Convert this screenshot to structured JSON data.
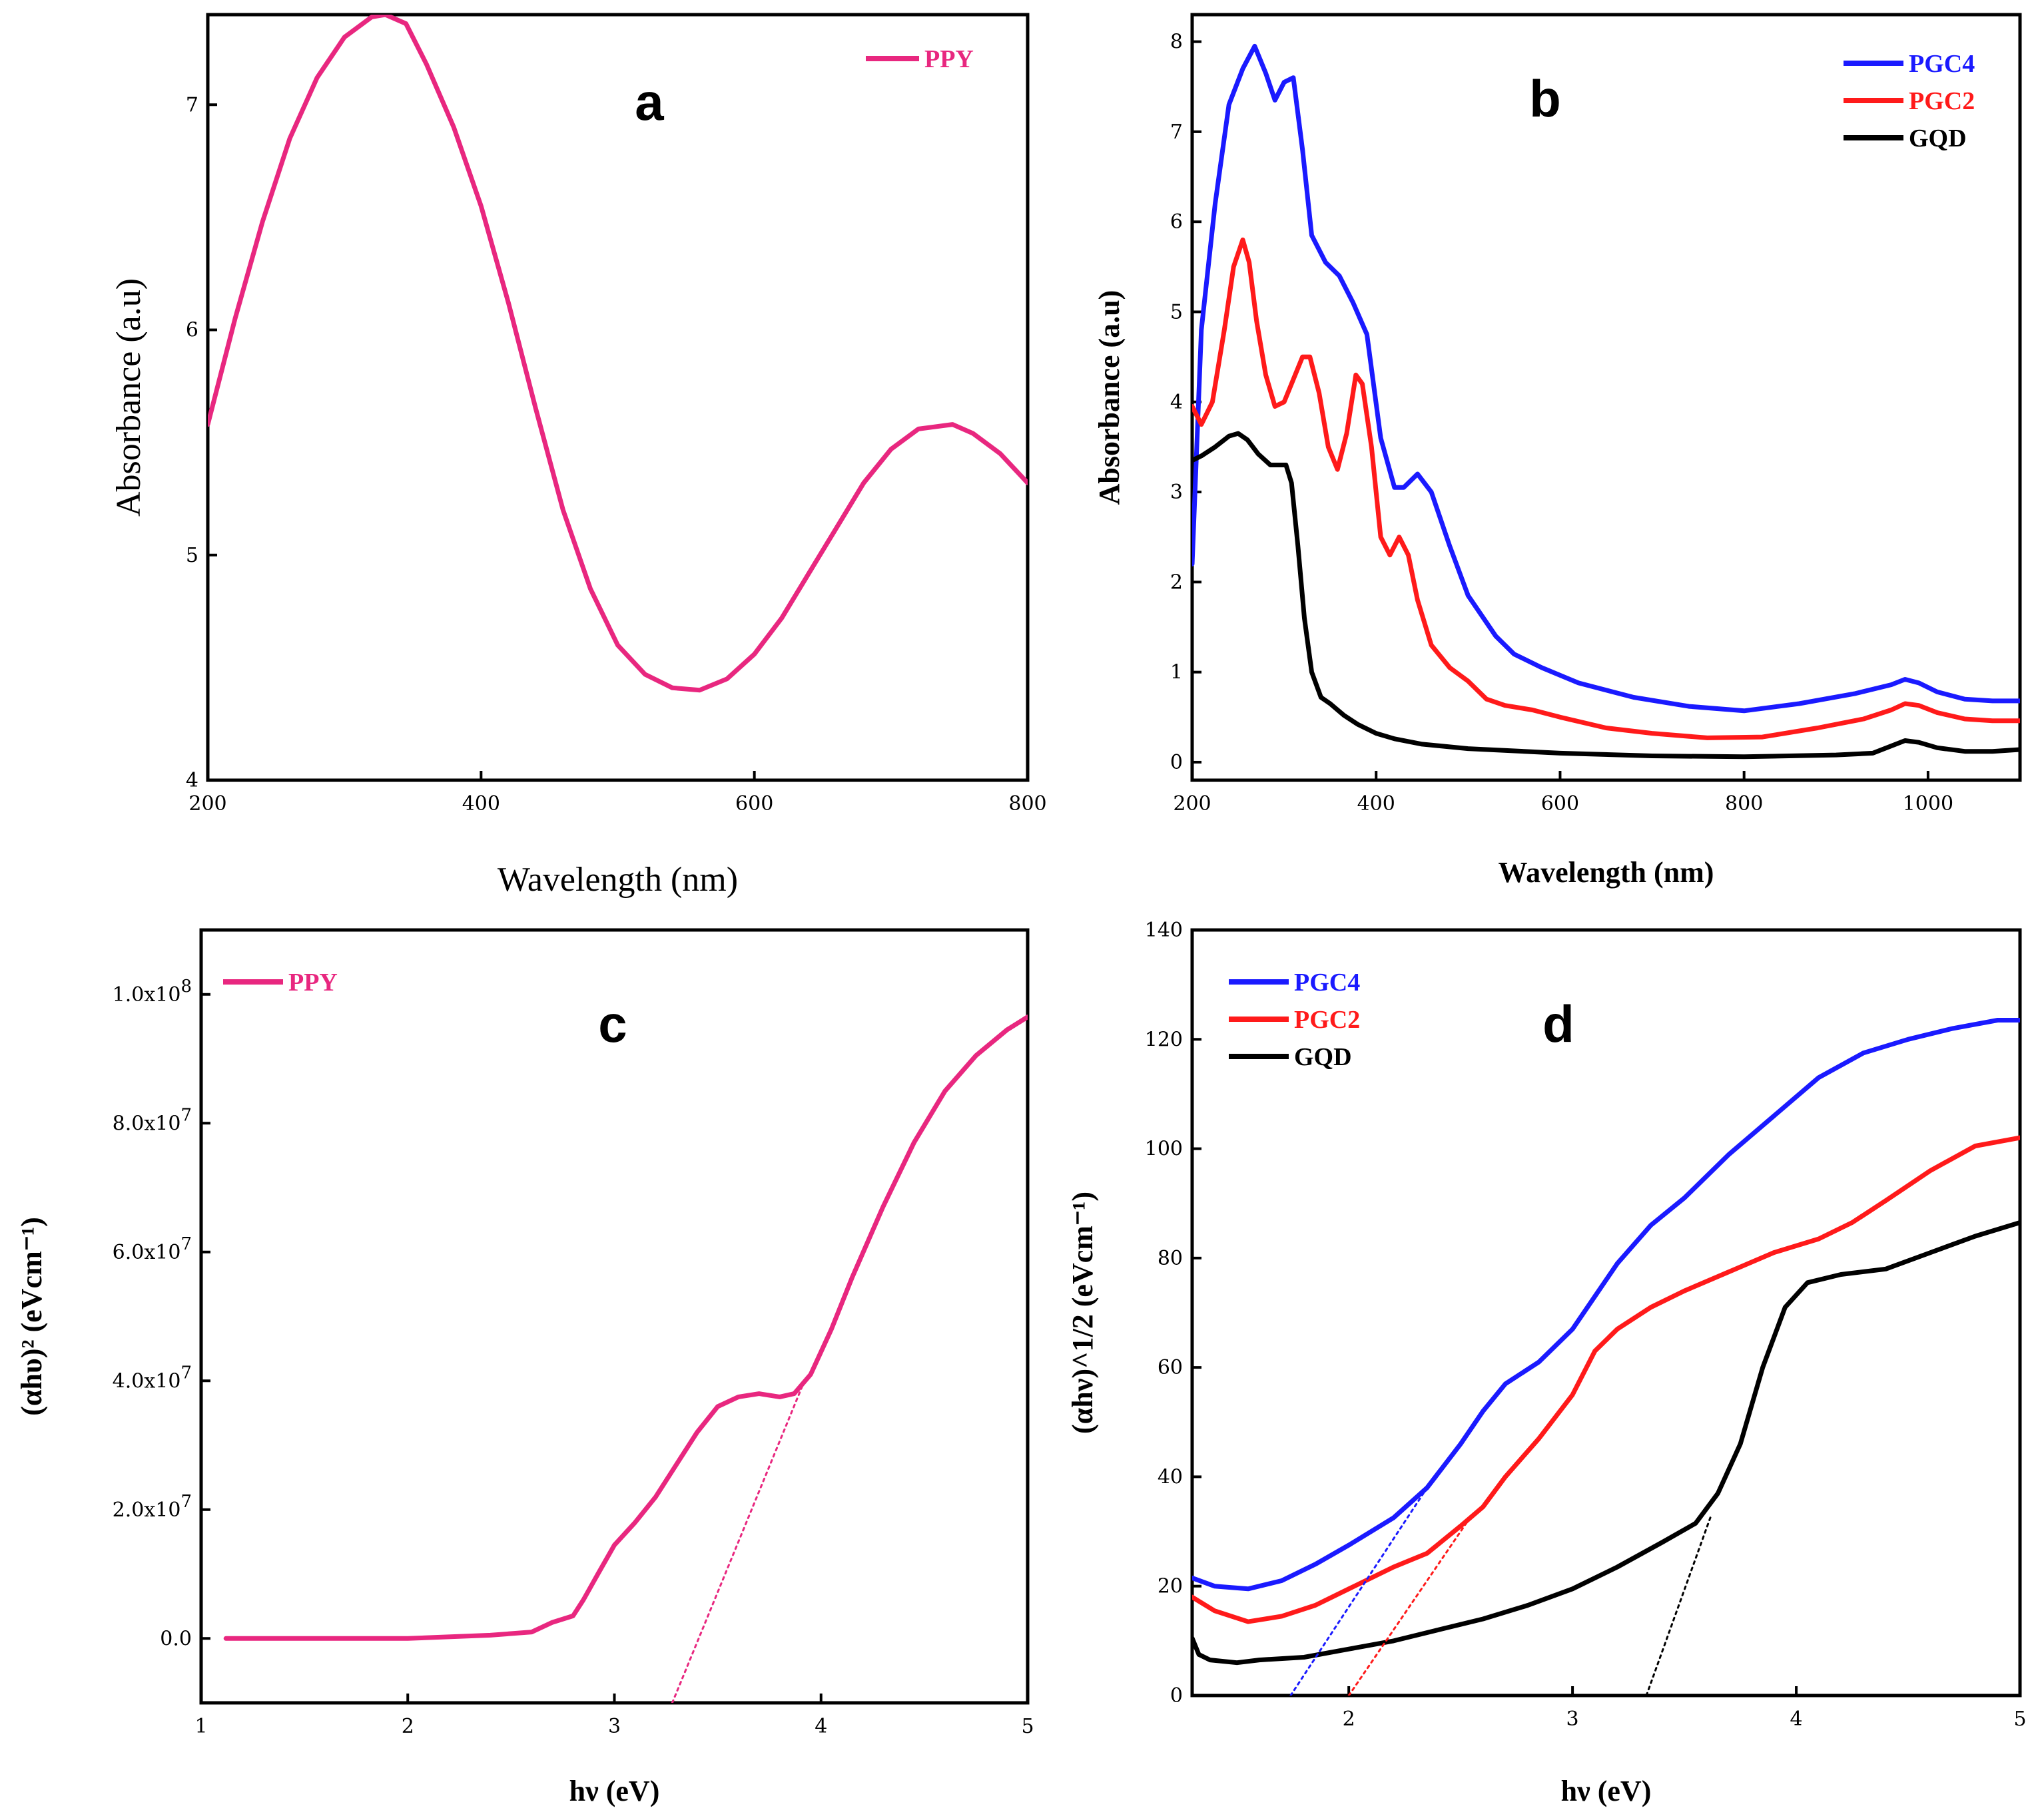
{
  "figure_title": "",
  "chart_data": [
    {
      "panel": "a",
      "type": "line",
      "panel_label": "a",
      "title": "",
      "xlabel": "Wavelength (nm)",
      "ylabel": "Absorbance (a.u)",
      "xlim": [
        200,
        800
      ],
      "ylim": [
        4,
        7.4
      ],
      "xticks": [
        200,
        400,
        600,
        800
      ],
      "yticks": [
        4,
        5,
        6,
        7
      ],
      "legend": "top-right",
      "series": [
        {
          "name": "PPY",
          "color": "#e8277f",
          "x": [
            200,
            220,
            240,
            260,
            280,
            300,
            320,
            330,
            345,
            360,
            380,
            400,
            420,
            440,
            460,
            480,
            500,
            520,
            540,
            560,
            580,
            600,
            620,
            640,
            660,
            680,
            700,
            720,
            745,
            760,
            780,
            800
          ],
          "y": [
            5.58,
            6.05,
            6.48,
            6.85,
            7.12,
            7.3,
            7.39,
            7.4,
            7.36,
            7.18,
            6.9,
            6.55,
            6.12,
            5.65,
            5.2,
            4.85,
            4.6,
            4.47,
            4.41,
            4.4,
            4.45,
            4.56,
            4.72,
            4.92,
            5.12,
            5.32,
            5.47,
            5.56,
            5.58,
            5.54,
            5.45,
            5.32
          ]
        }
      ]
    },
    {
      "panel": "b",
      "type": "line",
      "panel_label": "b",
      "title": "",
      "xlabel": "Wavelength (nm)",
      "ylabel": "Absorbance (a.u)",
      "xlim": [
        200,
        1100
      ],
      "ylim": [
        -0.2,
        8.3
      ],
      "xticks": [
        200,
        400,
        600,
        800,
        1000
      ],
      "yticks": [
        0,
        1,
        2,
        3,
        4,
        5,
        6,
        7,
        8
      ],
      "legend": "top-right",
      "series": [
        {
          "name": "PGC4",
          "color": "#1a1aff",
          "x": [
            200,
            210,
            225,
            240,
            255,
            268,
            280,
            290,
            300,
            310,
            320,
            330,
            345,
            360,
            375,
            390,
            405,
            420,
            430,
            445,
            460,
            480,
            500,
            530,
            550,
            580,
            620,
            680,
            740,
            800,
            860,
            920,
            960,
            975,
            990,
            1010,
            1040,
            1070,
            1100
          ],
          "y": [
            2.2,
            4.8,
            6.2,
            7.3,
            7.7,
            7.95,
            7.65,
            7.35,
            7.55,
            7.6,
            6.8,
            5.85,
            5.55,
            5.4,
            5.1,
            4.75,
            3.6,
            3.05,
            3.05,
            3.2,
            3.0,
            2.4,
            1.85,
            1.4,
            1.2,
            1.05,
            0.88,
            0.72,
            0.62,
            0.57,
            0.65,
            0.76,
            0.86,
            0.92,
            0.88,
            0.78,
            0.7,
            0.68,
            0.68
          ]
        },
        {
          "name": "PGC2",
          "color": "#ff1a1a",
          "x": [
            200,
            210,
            222,
            235,
            245,
            255,
            262,
            270,
            280,
            290,
            300,
            310,
            320,
            328,
            338,
            348,
            358,
            368,
            378,
            385,
            395,
            405,
            415,
            425,
            435,
            445,
            460,
            480,
            500,
            520,
            540,
            570,
            600,
            650,
            700,
            760,
            820,
            880,
            930,
            960,
            975,
            990,
            1010,
            1040,
            1070,
            1100
          ],
          "y": [
            3.95,
            3.75,
            4.0,
            4.8,
            5.5,
            5.8,
            5.55,
            4.9,
            4.3,
            3.95,
            4.0,
            4.25,
            4.5,
            4.5,
            4.1,
            3.5,
            3.25,
            3.65,
            4.3,
            4.2,
            3.5,
            2.5,
            2.3,
            2.5,
            2.3,
            1.8,
            1.3,
            1.05,
            0.9,
            0.7,
            0.63,
            0.58,
            0.5,
            0.38,
            0.32,
            0.27,
            0.28,
            0.38,
            0.48,
            0.58,
            0.65,
            0.63,
            0.55,
            0.48,
            0.46,
            0.46
          ]
        },
        {
          "name": "GQD",
          "color": "#000000",
          "x": [
            200,
            210,
            225,
            240,
            250,
            260,
            272,
            285,
            295,
            302,
            308,
            315,
            322,
            330,
            340,
            350,
            365,
            380,
            400,
            420,
            450,
            500,
            600,
            700,
            800,
            900,
            940,
            960,
            975,
            990,
            1010,
            1040,
            1070,
            1100
          ],
          "y": [
            3.35,
            3.4,
            3.5,
            3.62,
            3.65,
            3.58,
            3.42,
            3.3,
            3.3,
            3.3,
            3.1,
            2.4,
            1.6,
            1.0,
            0.72,
            0.65,
            0.52,
            0.42,
            0.32,
            0.26,
            0.2,
            0.15,
            0.1,
            0.07,
            0.06,
            0.08,
            0.1,
            0.18,
            0.24,
            0.22,
            0.16,
            0.12,
            0.12,
            0.14
          ]
        }
      ]
    },
    {
      "panel": "c",
      "type": "line",
      "panel_label": "c",
      "title": "",
      "xlabel": "hν (eV)",
      "ylabel": "(αhυ)² (eVcm⁻¹)",
      "xlim": [
        1,
        5
      ],
      "ylim": [
        -10000000,
        110000000
      ],
      "xticks": [
        1,
        2,
        3,
        4,
        5
      ],
      "yticks": [
        0,
        20000000,
        40000000,
        60000000,
        80000000,
        100000000
      ],
      "ytick_labels": [
        {
          "base": "0.0",
          "exp": ""
        },
        {
          "base": "2.0x10",
          "exp": "7"
        },
        {
          "base": "4.0x10",
          "exp": "7"
        },
        {
          "base": "6.0x10",
          "exp": "7"
        },
        {
          "base": "8.0x10",
          "exp": "7"
        },
        {
          "base": "1.0x10",
          "exp": "8"
        }
      ],
      "legend": "top-left",
      "series": [
        {
          "name": "PPY",
          "color": "#e8277f",
          "x": [
            1.12,
            1.5,
            2.0,
            2.4,
            2.6,
            2.7,
            2.8,
            2.85,
            2.92,
            3.0,
            3.1,
            3.2,
            3.3,
            3.4,
            3.5,
            3.6,
            3.7,
            3.8,
            3.87,
            3.95,
            4.05,
            4.15,
            4.3,
            4.45,
            4.6,
            4.75,
            4.9,
            5.0
          ],
          "y": [
            0,
            0,
            0,
            500000,
            1000000,
            2500000,
            3500000,
            6000000,
            10000000,
            14500000,
            18000000,
            22000000,
            27000000,
            32000000,
            36000000,
            37500000,
            38000000,
            37500000,
            38000000,
            41000000,
            48000000,
            56000000,
            67000000,
            77000000,
            85000000,
            90500000,
            94500000,
            96500000
          ]
        },
        {
          "name": "tangent",
          "color": "#e8277f",
          "dashed": true,
          "x": [
            3.28,
            3.92
          ],
          "y": [
            -10000000,
            40000000
          ]
        }
      ]
    },
    {
      "panel": "d",
      "type": "line",
      "panel_label": "d",
      "title": "",
      "xlabel": "hν (eV)",
      "ylabel": "(αhν)^1/2 (eVcm⁻¹)",
      "xlim": [
        1.3,
        5
      ],
      "ylim": [
        0,
        140
      ],
      "xticks": [
        2,
        3,
        4,
        5
      ],
      "yticks": [
        0,
        20,
        40,
        60,
        80,
        100,
        120,
        140
      ],
      "legend": "top-left",
      "series": [
        {
          "name": "PGC4",
          "color": "#1a1aff",
          "x": [
            1.3,
            1.4,
            1.55,
            1.7,
            1.85,
            2.0,
            2.2,
            2.35,
            2.5,
            2.6,
            2.7,
            2.85,
            3.0,
            3.1,
            3.2,
            3.35,
            3.5,
            3.7,
            3.9,
            4.1,
            4.3,
            4.5,
            4.7,
            4.9,
            5.0
          ],
          "y": [
            21.5,
            20,
            19.5,
            21,
            24,
            27.5,
            32.5,
            38,
            46,
            52,
            57,
            61,
            67,
            73,
            79,
            86,
            91,
            99,
            106,
            113,
            117.5,
            120,
            122,
            123.5,
            123.5
          ]
        },
        {
          "name": "PGC2",
          "color": "#ff1a1a",
          "x": [
            1.3,
            1.4,
            1.55,
            1.7,
            1.85,
            2.0,
            2.2,
            2.35,
            2.5,
            2.6,
            2.7,
            2.85,
            3.0,
            3.1,
            3.2,
            3.35,
            3.5,
            3.7,
            3.9,
            4.1,
            4.25,
            4.4,
            4.6,
            4.8,
            5.0
          ],
          "y": [
            18,
            15.5,
            13.5,
            14.5,
            16.5,
            19.5,
            23.5,
            26,
            31,
            34.5,
            40,
            47,
            55,
            63,
            67,
            71,
            74,
            77.5,
            81,
            83.5,
            86.5,
            90.5,
            96,
            100.5,
            102
          ]
        },
        {
          "name": "GQD",
          "color": "#000000",
          "x": [
            1.3,
            1.33,
            1.38,
            1.5,
            1.6,
            1.8,
            2.0,
            2.2,
            2.4,
            2.6,
            2.8,
            3.0,
            3.2,
            3.4,
            3.55,
            3.65,
            3.75,
            3.85,
            3.95,
            4.05,
            4.2,
            4.4,
            4.6,
            4.8,
            5.0
          ],
          "y": [
            10.5,
            7.5,
            6.5,
            6,
            6.5,
            7,
            8.5,
            10,
            12,
            14,
            16.5,
            19.5,
            23.5,
            28,
            31.5,
            37,
            46,
            60,
            71,
            75.5,
            77,
            78,
            81,
            84,
            86.5
          ]
        },
        {
          "name": "PGC4 tangent",
          "color": "#1a1aff",
          "dashed": true,
          "x": [
            1.74,
            2.35
          ],
          "y": [
            0,
            38
          ]
        },
        {
          "name": "PGC2 tangent",
          "color": "#ff1a1a",
          "dashed": true,
          "x": [
            2.0,
            2.55
          ],
          "y": [
            0,
            33
          ]
        },
        {
          "name": "GQD tangent",
          "color": "#000000",
          "dashed": true,
          "x": [
            3.33,
            3.62
          ],
          "y": [
            0,
            33
          ]
        }
      ]
    }
  ]
}
